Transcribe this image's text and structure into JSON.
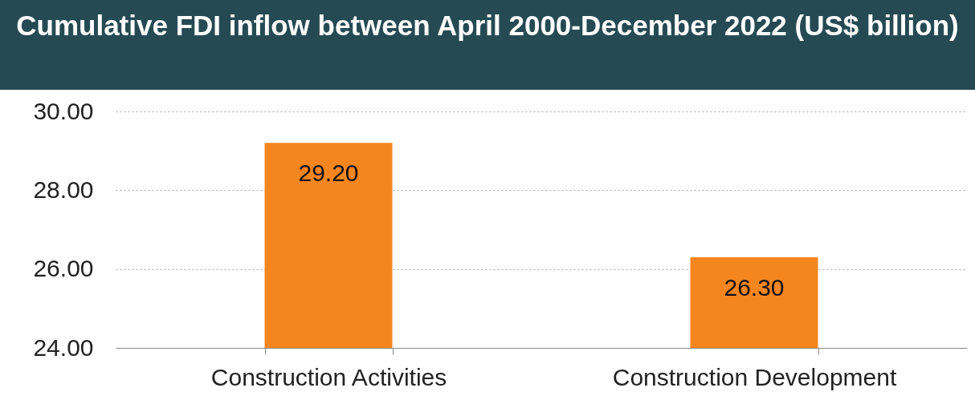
{
  "chart_data": {
    "type": "bar",
    "title": "Cumulative FDI inflow between April 2000-December 2022 (US$ billion)",
    "categories": [
      "Construction Activities",
      "Construction Development"
    ],
    "values": [
      29.2,
      26.3
    ],
    "value_labels": [
      "29.20",
      "26.30"
    ],
    "color": "#f5861f",
    "ylim": [
      24,
      30
    ],
    "yticks": [
      {
        "value": 24,
        "label": "24.00"
      },
      {
        "value": 26,
        "label": "26.00"
      },
      {
        "value": 28,
        "label": "28.00"
      },
      {
        "value": 30,
        "label": "30.00"
      }
    ],
    "grid": "y"
  }
}
